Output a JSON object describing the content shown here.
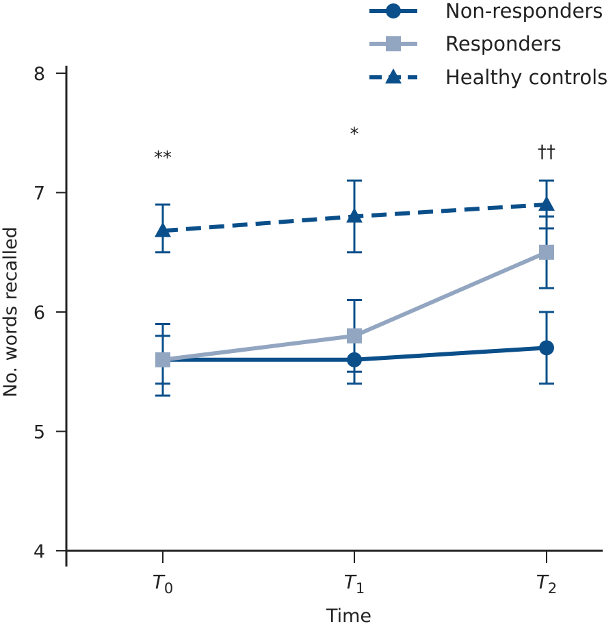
{
  "chart_data": {
    "type": "line",
    "title": "",
    "xlabel": "Time",
    "ylabel": "No. words recalled",
    "ylim": [
      4,
      8
    ],
    "yticks": [
      4,
      5,
      6,
      7,
      8
    ],
    "categories": [
      {
        "base": "T",
        "sub": "0"
      },
      {
        "base": "T",
        "sub": "1"
      },
      {
        "base": "T",
        "sub": "2"
      }
    ],
    "series": [
      {
        "name": "Non-responders",
        "marker": "circle",
        "line": "solid",
        "color": "#0a4f8a",
        "values": [
          5.6,
          5.6,
          5.7
        ],
        "err_low": [
          5.4,
          5.4,
          5.4
        ],
        "err_high": [
          5.8,
          5.8,
          6.0
        ]
      },
      {
        "name": "Responders",
        "marker": "square",
        "line": "solid",
        "color": "#93a6c1",
        "values": [
          5.6,
          5.8,
          6.5
        ],
        "err_low": [
          5.3,
          5.5,
          6.2
        ],
        "err_high": [
          5.9,
          6.1,
          6.8
        ]
      },
      {
        "name": "Healthy controls",
        "marker": "triangle",
        "line": "dashed",
        "color": "#0a4f8a",
        "values": [
          6.68,
          6.8,
          6.9
        ],
        "err_low": [
          6.5,
          6.5,
          6.7
        ],
        "err_high": [
          6.9,
          7.1,
          7.1
        ]
      }
    ],
    "annotations": [
      {
        "text": "**",
        "category_index": 0,
        "y": 7.3
      },
      {
        "text": "*",
        "category_index": 1,
        "y": 7.5
      },
      {
        "text": "††",
        "category_index": 2,
        "y": 7.35
      }
    ],
    "legend_position": "top-right"
  }
}
